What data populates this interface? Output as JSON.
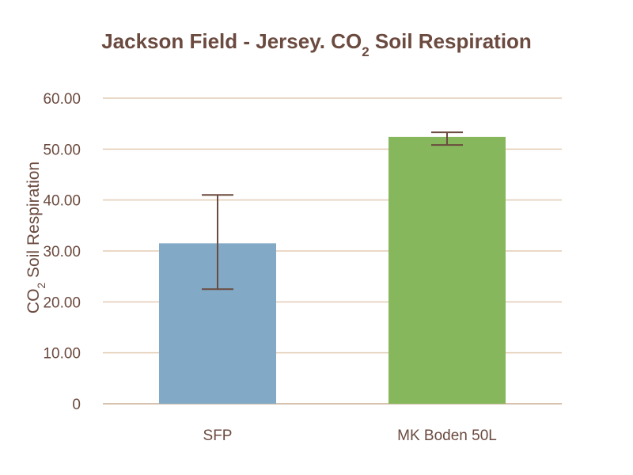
{
  "colors": {
    "text": "#6b4a3f",
    "grid": "#e3cbb3",
    "axis": "#c9ad93",
    "error_bar": "#6b4a3f"
  },
  "chart_data": {
    "type": "bar",
    "title": {
      "main": "Jackson Field - Jersey. CO",
      "subscript": "2",
      "rest": " Soil Respiration"
    },
    "ylabel": {
      "main": "CO",
      "subscript": "2",
      "rest": " Soil Respiration"
    },
    "xlabel": "",
    "categories": [
      "SFP",
      "MK Boden 50L"
    ],
    "values": [
      31.5,
      52.4
    ],
    "error_low": [
      22.5,
      50.8
    ],
    "error_high": [
      41.0,
      53.3
    ],
    "bar_colors": [
      "#82a9c6",
      "#86b75c"
    ],
    "ylim": [
      0,
      60
    ],
    "yticks": [
      0,
      10,
      20,
      30,
      40,
      50,
      60
    ],
    "ytick_labels": [
      "0",
      "10.00",
      "20.00",
      "30.00",
      "40.00",
      "50.00",
      "60.00"
    ],
    "grid": true,
    "legend": "none"
  }
}
